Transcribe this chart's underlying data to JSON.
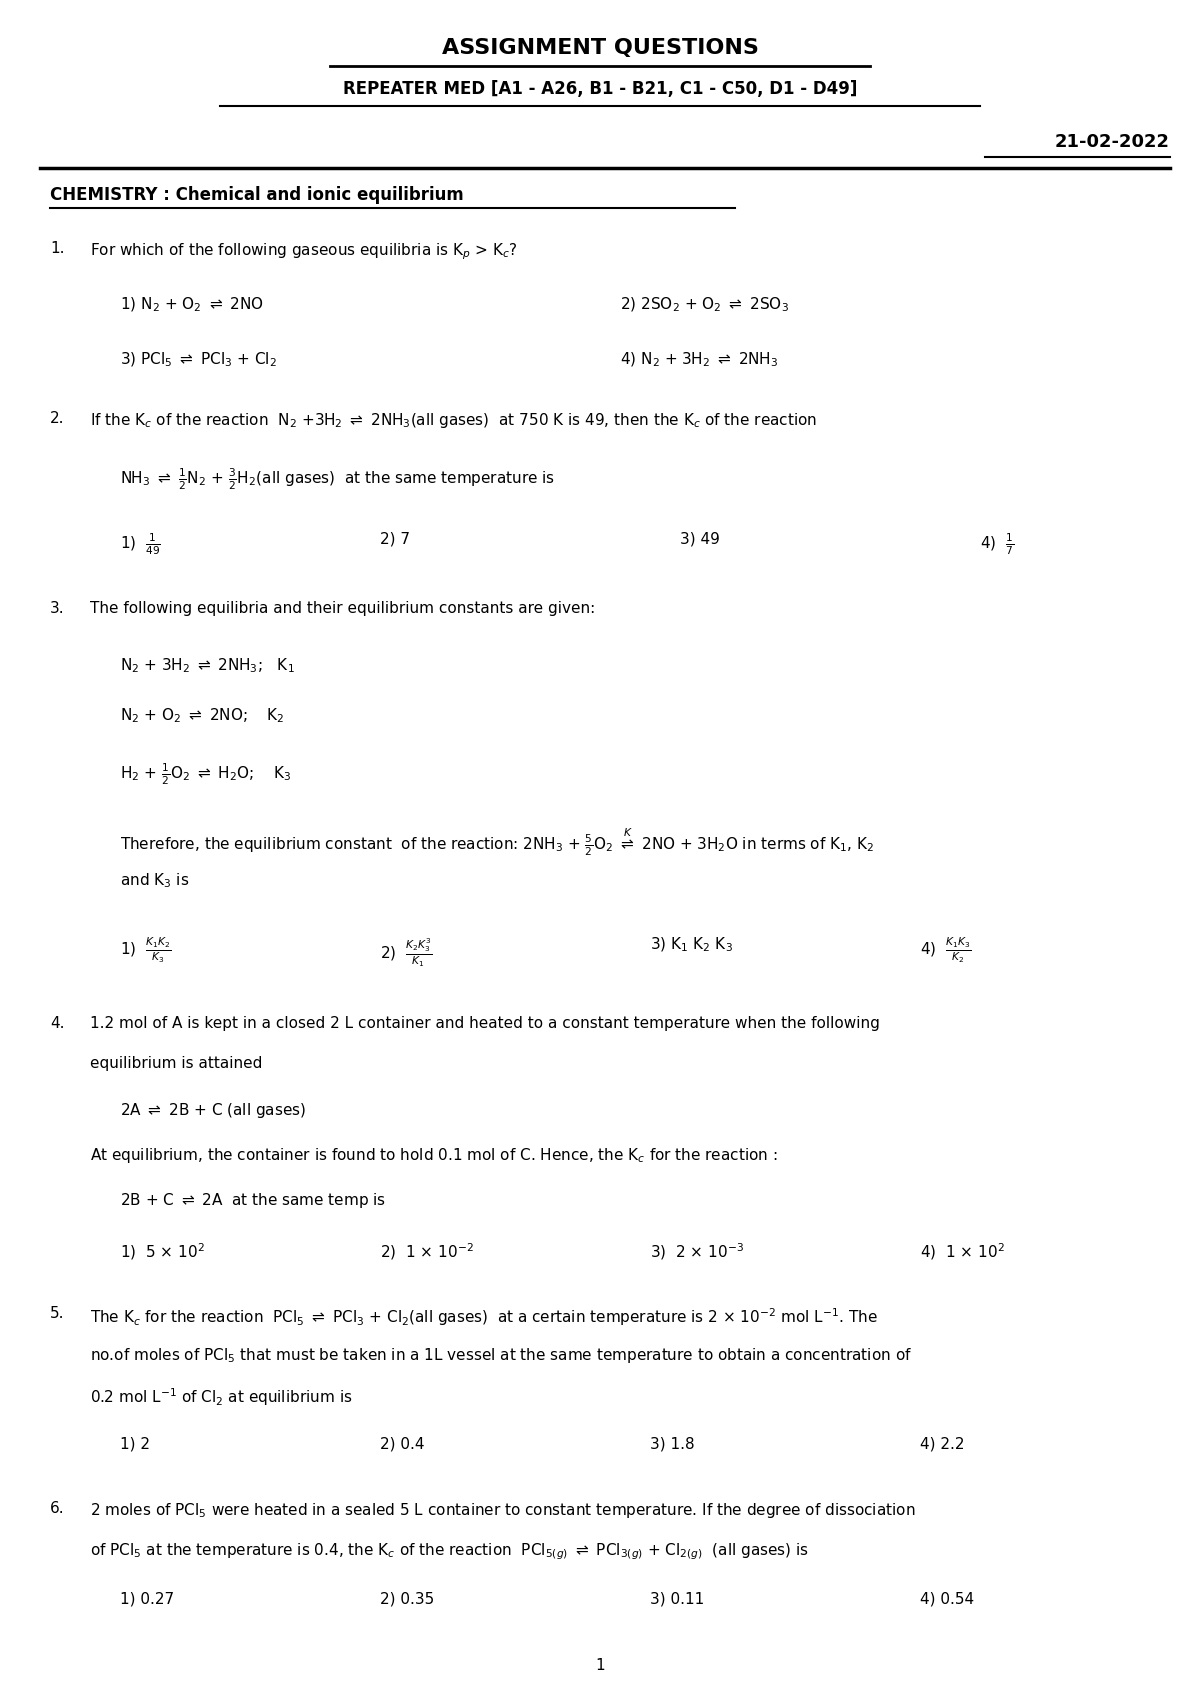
{
  "title": "ASSIGNMENT QUESTIONS",
  "subtitle": "REPEATER MED [A1 - A26, B1 - B21, C1 - C50, D1 - D49]",
  "date": "21-02-2022",
  "subject": "CHEMISTRY : Chemical and ionic equilibrium",
  "bg_color": "#ffffff",
  "text_color": "#000000",
  "page_number": "1"
}
